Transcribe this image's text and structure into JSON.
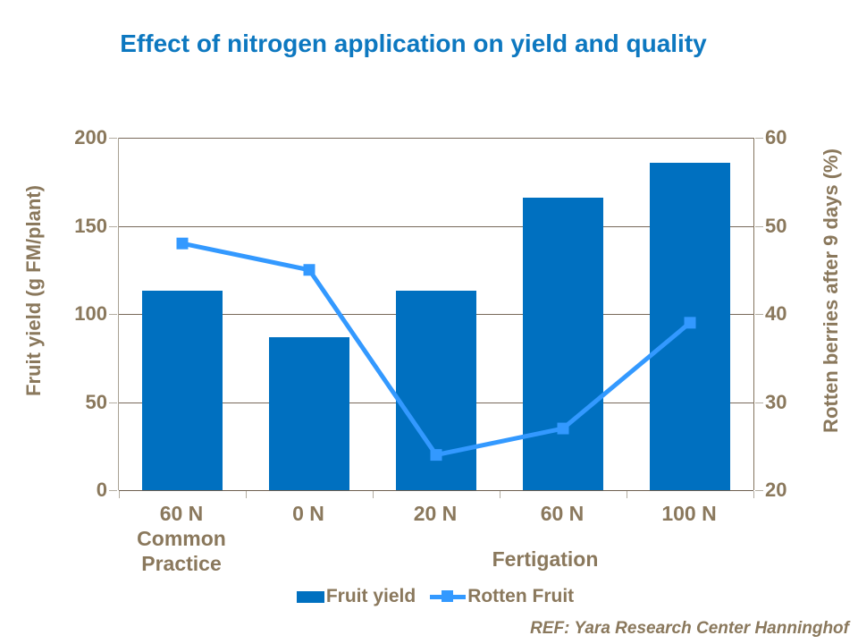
{
  "title": "Effect of nitrogen application on yield and quality",
  "footer": "REF:  Yara Research Center Hanninghof",
  "colors": {
    "title": "#0d78c0",
    "bar": "#0070c0",
    "line": "#3399ff",
    "text_brown": "#8a785c",
    "gridline": "#78695a",
    "tick": "#b3aca0"
  },
  "chart_data": {
    "type": "bar",
    "subtype": "bar + line combo, dual y-axes",
    "categories": [
      "60 N Common Practice",
      "0 N",
      "20 N",
      "60 N",
      "100 N"
    ],
    "category_lines": [
      [
        "60 N",
        "Common",
        "Practice"
      ],
      [
        "0 N"
      ],
      [
        "20 N"
      ],
      [
        "60 N"
      ],
      [
        "100 N"
      ]
    ],
    "group_label": "Fertigation",
    "series": [
      {
        "name": "Fruit yield",
        "type": "bar",
        "axis": "left",
        "values": [
          113,
          87,
          113,
          166,
          186
        ],
        "color": "#0070c0"
      },
      {
        "name": "Rotten Fruit",
        "type": "line",
        "axis": "right",
        "values": [
          48,
          45,
          24,
          27,
          39
        ],
        "color": "#3399ff"
      }
    ],
    "left_axis": {
      "label": "Fruit yield (g FM/plant)",
      "min": 0,
      "max": 200,
      "ticks": [
        200,
        150,
        100,
        50,
        0
      ]
    },
    "right_axis": {
      "label": "Rotten berries after 9 days (%)",
      "min": 20,
      "max": 60,
      "ticks": [
        60,
        50,
        40,
        30,
        20
      ]
    },
    "grid": true,
    "legend_position": "bottom"
  }
}
